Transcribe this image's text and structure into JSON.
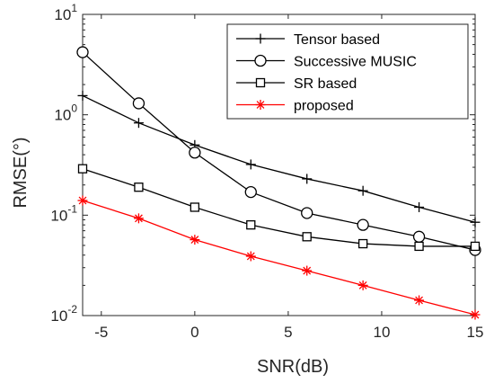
{
  "chart_data": {
    "type": "line",
    "title": "",
    "xlabel": "SNR(dB)",
    "ylabel": "RMSE(°)",
    "x": [
      -6,
      -3,
      0,
      3,
      6,
      9,
      12,
      15
    ],
    "xlim": [
      -6,
      15
    ],
    "ylim": [
      0.01,
      10
    ],
    "yscale": "log",
    "grid": false,
    "legend_position": "top-right",
    "xticks": [
      -5,
      0,
      5,
      10,
      15
    ],
    "xtick_labels": [
      "-5",
      "0",
      "5",
      "10",
      "15"
    ],
    "yticks": [
      0.01,
      0.1,
      1,
      10
    ],
    "ytick_labels": [
      {
        "base": "10",
        "exp": "-2"
      },
      {
        "base": "10",
        "exp": "-1"
      },
      {
        "base": "10",
        "exp": "0"
      },
      {
        "base": "10",
        "exp": "1"
      }
    ],
    "series": [
      {
        "name": "Tensor based",
        "marker": "plus",
        "color": "#000000",
        "values": [
          1.55,
          0.83,
          0.5,
          0.32,
          0.23,
          0.175,
          0.12,
          0.085
        ]
      },
      {
        "name": "Successive MUSIC",
        "marker": "circle",
        "color": "#000000",
        "values": [
          4.2,
          1.3,
          0.42,
          0.17,
          0.105,
          0.08,
          0.061,
          0.045
        ]
      },
      {
        "name": "SR based",
        "marker": "square",
        "color": "#000000",
        "values": [
          0.29,
          0.19,
          0.12,
          0.08,
          0.061,
          0.052,
          0.049,
          0.049
        ]
      },
      {
        "name": "proposed",
        "marker": "asterisk",
        "color": "#ff0000",
        "values": [
          0.14,
          0.093,
          0.057,
          0.039,
          0.028,
          0.02,
          0.0142,
          0.0102
        ]
      }
    ]
  }
}
